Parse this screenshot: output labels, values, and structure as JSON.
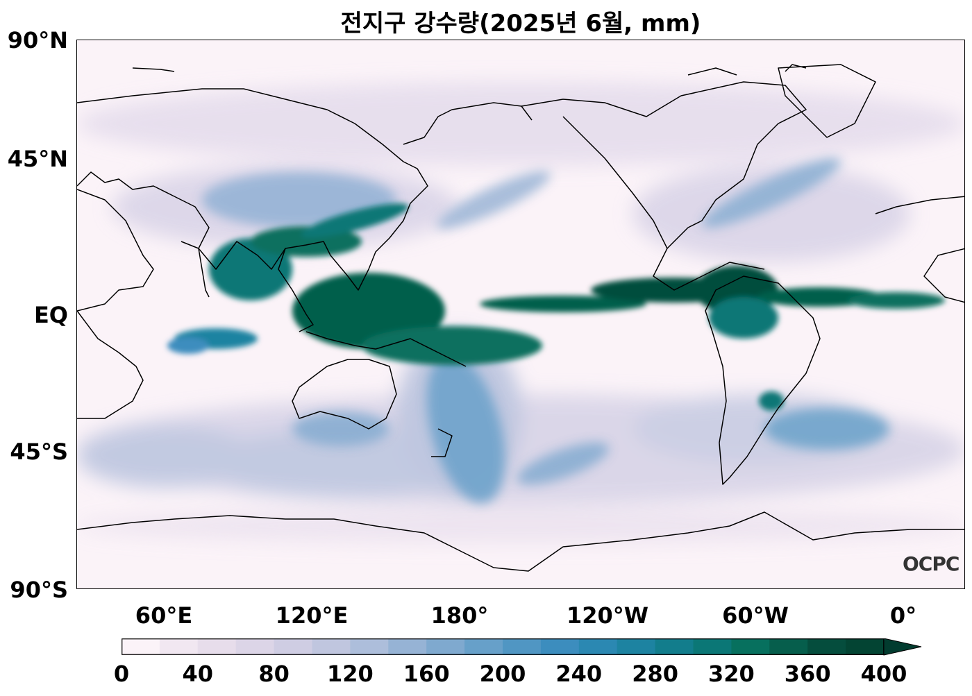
{
  "title": "전지구 강수량(2025년 6월, mm)",
  "y_axis": {
    "ticks": [
      {
        "label": "90°N",
        "lat": 90
      },
      {
        "label": "45°N",
        "lat": 45
      },
      {
        "label": "EQ",
        "lat": 0
      },
      {
        "label": "45°S",
        "lat": -45
      },
      {
        "label": "90°S",
        "lat": -90
      }
    ]
  },
  "x_axis": {
    "ticks": [
      {
        "label": "60°E",
        "lon": 60
      },
      {
        "label": "120°E",
        "lon": 120
      },
      {
        "label": "180°",
        "lon": 180
      },
      {
        "label": "120°W",
        "lon": 240
      },
      {
        "label": "60°W",
        "lon": 300
      },
      {
        "label": "0°",
        "lon": 360
      }
    ]
  },
  "map": {
    "projection": "PlateCarree",
    "central_longitude": 200,
    "lon_range": [
      25,
      385
    ],
    "lat_range": [
      -90,
      90
    ],
    "variable": "precipitation",
    "units": "mm"
  },
  "colorbar": {
    "min": 0,
    "max": 400,
    "step": 20,
    "extend": "max",
    "tick_labels": [
      "0",
      "40",
      "80",
      "120",
      "160",
      "200",
      "240",
      "280",
      "320",
      "360",
      "400"
    ],
    "colors": [
      "#fbf3f8",
      "#f1e7f1",
      "#e7ddeb",
      "#dcd5e7",
      "#cfcde3",
      "#c0c6df",
      "#adbedb",
      "#96b3d5",
      "#7fa9cf",
      "#67a0c9",
      "#5096c3",
      "#3c8dbe",
      "#2b88b2",
      "#1d83a1",
      "#127d8c",
      "#0b7776",
      "#07705e",
      "#065e4c",
      "#054d3d",
      "#034433"
    ],
    "extend_color": "#023c2f"
  },
  "logo": "OCPC"
}
